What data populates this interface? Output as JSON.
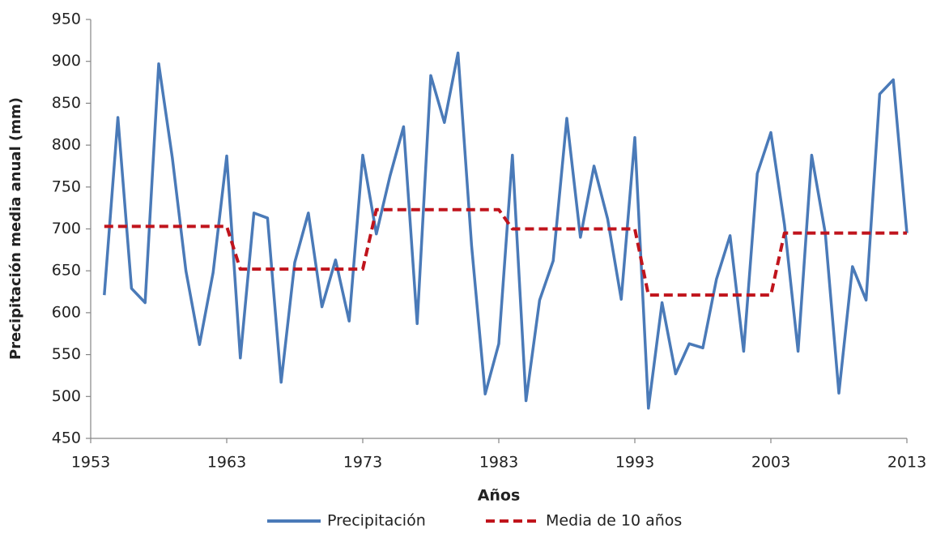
{
  "chart_data": {
    "type": "line",
    "x_label": "Años",
    "y_label": "Precipitación  media anual (mm)",
    "x": [
      1954,
      1955,
      1956,
      1957,
      1958,
      1959,
      1960,
      1961,
      1962,
      1963,
      1964,
      1965,
      1966,
      1967,
      1968,
      1969,
      1970,
      1971,
      1972,
      1973,
      1974,
      1975,
      1976,
      1977,
      1978,
      1979,
      1980,
      1981,
      1982,
      1983,
      1984,
      1985,
      1986,
      1987,
      1988,
      1989,
      1990,
      1991,
      1992,
      1993,
      1994,
      1995,
      1996,
      1997,
      1998,
      1999,
      2000,
      2001,
      2002,
      2003,
      2004,
      2005,
      2006,
      2007,
      2008,
      2009,
      2010,
      2011,
      2012,
      2013
    ],
    "series": [
      {
        "name": "Precipitación",
        "color": "#4a7ab8",
        "dash": false,
        "values": [
          621,
          833,
          629,
          612,
          897,
          785,
          650,
          562,
          648,
          787,
          546,
          719,
          713,
          517,
          660,
          719,
          607,
          663,
          590,
          788,
          694,
          763,
          822,
          587,
          883,
          827,
          910,
          680,
          503,
          563,
          788,
          495,
          615,
          662,
          832,
          690,
          775,
          712,
          616,
          809,
          486,
          612,
          527,
          563,
          558,
          640,
          692,
          554,
          766,
          815,
          705,
          554,
          788,
          695,
          504,
          655,
          615,
          861,
          878,
          695
        ]
      },
      {
        "name": "Media de 10 años",
        "color": "#c0141c",
        "dash": true,
        "values": [
          703,
          703,
          703,
          703,
          703,
          703,
          703,
          703,
          703,
          703,
          652,
          652,
          652,
          652,
          652,
          652,
          652,
          652,
          652,
          652,
          723,
          723,
          723,
          723,
          723,
          723,
          723,
          723,
          723,
          723,
          700,
          700,
          700,
          700,
          700,
          700,
          700,
          700,
          700,
          700,
          621,
          621,
          621,
          621,
          621,
          621,
          621,
          621,
          621,
          621,
          695,
          695,
          695,
          695,
          695,
          695,
          695,
          695,
          695,
          695
        ]
      }
    ],
    "xlim": [
      1953,
      2013
    ],
    "xticks": [
      1953,
      1963,
      1973,
      1983,
      1993,
      2003,
      2013
    ],
    "ylim": [
      450,
      950
    ],
    "yticks": [
      450,
      500,
      550,
      600,
      650,
      700,
      750,
      800,
      850,
      900,
      950
    ],
    "grid": false,
    "legend": "bottom"
  }
}
